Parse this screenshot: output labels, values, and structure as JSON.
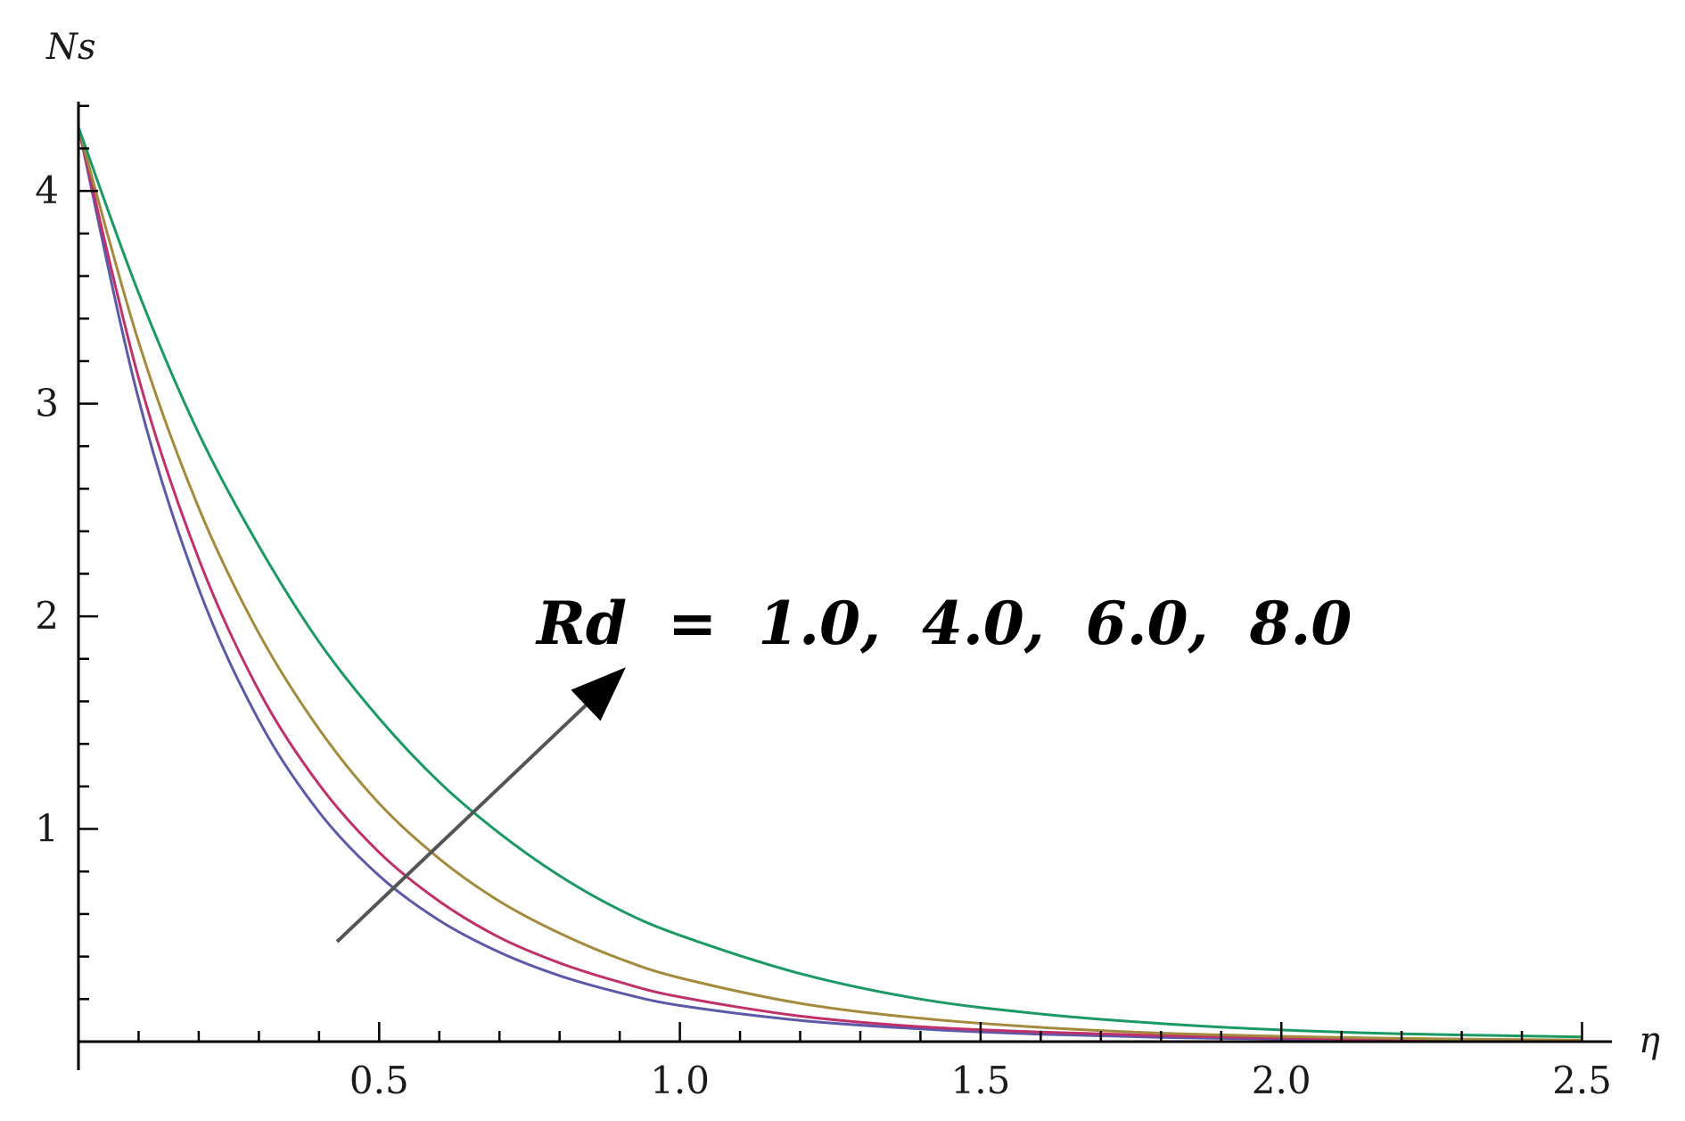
{
  "chart_data": {
    "type": "line",
    "xlabel": "η",
    "ylabel": "Ns",
    "xlim": [
      0,
      2.52
    ],
    "ylim": [
      0,
      4.42
    ],
    "x_ticks": [
      0.5,
      1.0,
      1.5,
      2.0,
      2.5
    ],
    "x_tick_labels": [
      "0.5",
      "1.0",
      "1.5",
      "2.0",
      "2.5"
    ],
    "y_ticks": [
      1,
      2,
      3,
      4
    ],
    "y_tick_labels": [
      "1",
      "2",
      "3",
      "4"
    ],
    "grid": false,
    "legend": "none",
    "annotation": {
      "text": "Rd  =  1.0,  4.0,  6.0,  8.0",
      "arrow_from": [
        0.43,
        0.47
      ],
      "arrow_to": [
        0.91,
        1.76
      ]
    },
    "x": [
      0.0,
      0.1,
      0.2,
      0.3,
      0.4,
      0.5,
      0.6,
      0.7,
      0.8,
      0.9,
      1.0,
      1.2,
      1.4,
      1.6,
      1.8,
      2.0,
      2.2,
      2.5
    ],
    "series": [
      {
        "color": "#5b59a8",
        "values": [
          4.3,
          3.02,
          2.13,
          1.51,
          1.08,
          0.78,
          0.57,
          0.42,
          0.31,
          0.23,
          0.17,
          0.1,
          0.06,
          0.035,
          0.02,
          0.012,
          0.007,
          0.004
        ]
      },
      {
        "color": "#c0306a",
        "values": [
          4.3,
          3.12,
          2.27,
          1.65,
          1.21,
          0.89,
          0.66,
          0.49,
          0.37,
          0.28,
          0.21,
          0.12,
          0.07,
          0.045,
          0.028,
          0.017,
          0.01,
          0.006
        ]
      },
      {
        "color": "#a38a3c",
        "values": [
          4.3,
          3.29,
          2.51,
          1.92,
          1.47,
          1.12,
          0.86,
          0.66,
          0.51,
          0.39,
          0.3,
          0.18,
          0.11,
          0.067,
          0.04,
          0.025,
          0.015,
          0.007
        ]
      },
      {
        "color": "#1a9a62",
        "values": [
          4.3,
          3.52,
          2.86,
          2.33,
          1.88,
          1.52,
          1.22,
          0.98,
          0.78,
          0.62,
          0.5,
          0.32,
          0.2,
          0.13,
          0.085,
          0.055,
          0.037,
          0.022
        ]
      }
    ],
    "colors": {
      "axis": "#000000",
      "arrow": "#555555",
      "arrow_head": "#000000"
    }
  }
}
